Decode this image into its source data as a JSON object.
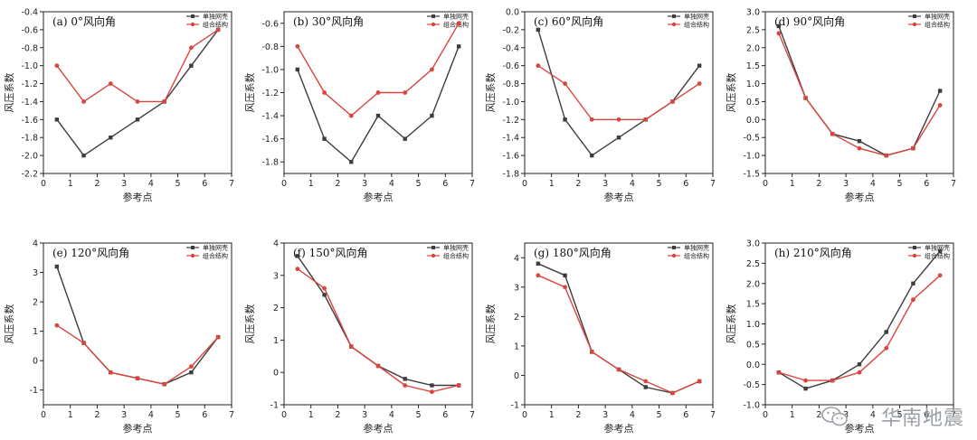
{
  "watermark": "华南地震",
  "colors": {
    "single": "#3d3d3d",
    "combined": "#d9463e"
  },
  "chart_data": [
    {
      "type": "line",
      "title": "(a) 0°风向角",
      "xlabel": "参考点",
      "ylabel": "风压系数",
      "xlim": [
        0,
        7
      ],
      "ylim": [
        -2.2,
        -0.4
      ],
      "xticks": [
        0,
        1,
        2,
        3,
        4,
        5,
        6,
        7
      ],
      "yticks": [
        -2.2,
        -2.0,
        -1.8,
        -1.6,
        -1.4,
        -1.2,
        -1.0,
        -0.8,
        -0.6,
        -0.4
      ],
      "x": [
        0.5,
        1.5,
        2.5,
        3.5,
        4.5,
        5.5,
        6.5
      ],
      "series": [
        {
          "name": "单独网壳",
          "values": [
            -1.6,
            -2.0,
            -1.8,
            -1.6,
            -1.4,
            -1.0,
            -0.6
          ]
        },
        {
          "name": "组合结构",
          "values": [
            -1.0,
            -1.4,
            -1.2,
            -1.4,
            -1.4,
            -0.8,
            -0.6
          ]
        }
      ]
    },
    {
      "type": "line",
      "title": "(b) 30°风向角",
      "xlabel": "参考点",
      "ylabel": "风压系数",
      "xlim": [
        0,
        7
      ],
      "ylim": [
        -1.9,
        -0.5
      ],
      "xticks": [
        0,
        1,
        2,
        3,
        4,
        5,
        6,
        7
      ],
      "yticks": [
        -1.8,
        -1.6,
        -1.4,
        -1.2,
        -1.0,
        -0.8,
        -0.6
      ],
      "x": [
        0.5,
        1.5,
        2.5,
        3.5,
        4.5,
        5.5,
        6.5
      ],
      "series": [
        {
          "name": "单独网壳",
          "values": [
            -1.0,
            -1.6,
            -1.8,
            -1.4,
            -1.6,
            -1.4,
            -0.8
          ]
        },
        {
          "name": "组合结构",
          "values": [
            -0.8,
            -1.2,
            -1.4,
            -1.2,
            -1.2,
            -1.0,
            -0.6
          ]
        }
      ]
    },
    {
      "type": "line",
      "title": "(c) 60°风向角",
      "xlabel": "参考点",
      "ylabel": "风压系数",
      "xlim": [
        0,
        7
      ],
      "ylim": [
        -1.8,
        0.0
      ],
      "xticks": [
        0,
        1,
        2,
        3,
        4,
        5,
        6,
        7
      ],
      "yticks": [
        -1.8,
        -1.6,
        -1.4,
        -1.2,
        -1.0,
        -0.8,
        -0.6,
        -0.4,
        -0.2,
        0.0
      ],
      "x": [
        0.5,
        1.5,
        2.5,
        3.5,
        4.5,
        5.5,
        6.5
      ],
      "series": [
        {
          "name": "单独网壳",
          "values": [
            -0.2,
            -1.2,
            -1.6,
            -1.4,
            -1.2,
            -1.0,
            -0.6
          ]
        },
        {
          "name": "组合结构",
          "values": [
            -0.6,
            -0.8,
            -1.2,
            -1.2,
            -1.2,
            -1.0,
            -0.8
          ]
        }
      ]
    },
    {
      "type": "line",
      "title": "(d) 90°风向角",
      "xlabel": "参考点",
      "ylabel": "风压系数",
      "xlim": [
        0,
        7
      ],
      "ylim": [
        -1.5,
        3.0
      ],
      "xticks": [
        0,
        1,
        2,
        3,
        4,
        5,
        6,
        7
      ],
      "yticks": [
        -1.5,
        -1.0,
        -0.5,
        0.0,
        0.5,
        1.0,
        1.5,
        2.0,
        2.5,
        3.0
      ],
      "x": [
        0.5,
        1.5,
        2.5,
        3.5,
        4.5,
        5.5,
        6.5
      ],
      "series": [
        {
          "name": "单独网壳",
          "values": [
            2.6,
            0.6,
            -0.4,
            -0.6,
            -1.0,
            -0.8,
            0.8
          ]
        },
        {
          "name": "组合结构",
          "values": [
            2.4,
            0.6,
            -0.4,
            -0.8,
            -1.0,
            -0.8,
            0.4
          ]
        }
      ]
    },
    {
      "type": "line",
      "title": "(e) 120°风向角",
      "xlabel": "参考点",
      "ylabel": "风压系数",
      "xlim": [
        0,
        7
      ],
      "ylim": [
        -1.5,
        4.0
      ],
      "xticks": [
        0,
        1,
        2,
        3,
        4,
        5,
        6,
        7
      ],
      "yticks": [
        -1,
        0,
        1,
        2,
        3,
        4
      ],
      "x": [
        0.5,
        1.5,
        2.5,
        3.5,
        4.5,
        5.5,
        6.5
      ],
      "series": [
        {
          "name": "单独网壳",
          "values": [
            3.2,
            0.6,
            -0.4,
            -0.6,
            -0.8,
            -0.4,
            0.8
          ]
        },
        {
          "name": "组合结构",
          "values": [
            1.2,
            0.6,
            -0.4,
            -0.6,
            -0.8,
            -0.2,
            0.8
          ]
        }
      ]
    },
    {
      "type": "line",
      "title": "(f) 150°风向角",
      "xlabel": "参考点",
      "ylabel": "风压系数",
      "xlim": [
        0,
        7
      ],
      "ylim": [
        -1.0,
        4.0
      ],
      "xticks": [
        0,
        1,
        2,
        3,
        4,
        5,
        6,
        7
      ],
      "yticks": [
        -1,
        0,
        1,
        2,
        3,
        4
      ],
      "x": [
        0.5,
        1.5,
        2.5,
        3.5,
        4.5,
        5.5,
        6.5
      ],
      "series": [
        {
          "name": "单独网壳",
          "values": [
            3.6,
            2.4,
            0.8,
            0.2,
            -0.2,
            -0.4,
            -0.4
          ]
        },
        {
          "name": "组合结构",
          "values": [
            3.2,
            2.6,
            0.8,
            0.2,
            -0.4,
            -0.6,
            -0.4
          ]
        }
      ]
    },
    {
      "type": "line",
      "title": "(g) 180°风向角",
      "xlabel": "参考点",
      "ylabel": "风压系数",
      "xlim": [
        0,
        7
      ],
      "ylim": [
        -1.0,
        4.5
      ],
      "xticks": [
        0,
        1,
        2,
        3,
        4,
        5,
        6,
        7
      ],
      "yticks": [
        -1,
        0,
        1,
        2,
        3,
        4
      ],
      "x": [
        0.5,
        1.5,
        2.5,
        3.5,
        4.5,
        5.5,
        6.5
      ],
      "series": [
        {
          "name": "单独网壳",
          "values": [
            3.8,
            3.4,
            0.8,
            0.2,
            -0.4,
            -0.6,
            -0.2
          ]
        },
        {
          "name": "组合结构",
          "values": [
            3.4,
            3.0,
            0.8,
            0.2,
            -0.2,
            -0.6,
            -0.2
          ]
        }
      ]
    },
    {
      "type": "line",
      "title": "(h) 210°风向角",
      "xlabel": "参考点",
      "ylabel": "风压系数",
      "xlim": [
        0,
        7
      ],
      "ylim": [
        -1.0,
        3.0
      ],
      "xticks": [
        0,
        1,
        2,
        3,
        4,
        5,
        6,
        7
      ],
      "yticks": [
        -1.0,
        -0.5,
        0.0,
        0.5,
        1.0,
        1.5,
        2.0,
        2.5,
        3.0
      ],
      "x": [
        0.5,
        1.5,
        2.5,
        3.5,
        4.5,
        5.5,
        6.5
      ],
      "series": [
        {
          "name": "单独网壳",
          "values": [
            -0.2,
            -0.6,
            -0.4,
            0.0,
            0.8,
            2.0,
            2.8
          ]
        },
        {
          "name": "组合结构",
          "values": [
            -0.2,
            -0.4,
            -0.4,
            -0.2,
            0.4,
            1.6,
            2.2
          ]
        }
      ]
    }
  ]
}
